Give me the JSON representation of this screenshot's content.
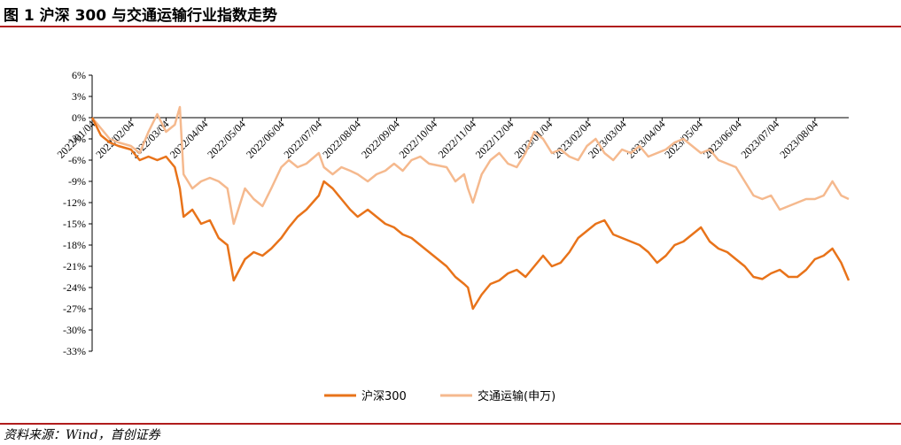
{
  "header": {
    "title": "图 1 沪深 300 与交通运输行业指数走势"
  },
  "footer": {
    "source": "资料来源：Wind，首创证券"
  },
  "chart_data": {
    "type": "line",
    "title": "",
    "xlabel": "",
    "ylabel": "",
    "ylim": [
      -33,
      6
    ],
    "y_ticks": [
      6,
      3,
      0,
      -3,
      -6,
      -9,
      -12,
      -15,
      -18,
      -21,
      -24,
      -27,
      -30,
      -33
    ],
    "y_tick_labels": [
      "6%",
      "3%",
      "0%",
      "-3%",
      "-6%",
      "-9%",
      "-12%",
      "-15%",
      "-18%",
      "-21%",
      "-24%",
      "-27%",
      "-30%",
      "-33%"
    ],
    "x_tick_labels": [
      "2022/01/04",
      "2022/02/04",
      "2022/03/04",
      "2022/04/04",
      "2022/05/04",
      "2022/06/04",
      "2022/07/04",
      "2022/08/04",
      "2022/09/04",
      "2022/10/04",
      "2022/11/04",
      "2022/12/04",
      "2023/01/04",
      "2023/02/04",
      "2023/03/04",
      "2023/04/04",
      "2023/05/04",
      "2023/06/04",
      "2023/07/04",
      "2023/08/04"
    ],
    "legend": "bottom-center",
    "grid": false,
    "colors": {
      "hs300": "#e8731a",
      "transport": "#f5b98e"
    },
    "series": [
      {
        "name": "沪深300",
        "x": [
          "2022/01/04",
          "2022/01/11",
          "2022/01/18",
          "2022/01/25",
          "2022/02/04",
          "2022/02/11",
          "2022/02/18",
          "2022/02/25",
          "2022/03/04",
          "2022/03/11",
          "2022/03/15",
          "2022/03/18",
          "2022/03/25",
          "2022/04/01",
          "2022/04/08",
          "2022/04/15",
          "2022/04/22",
          "2022/04/27",
          "2022/05/06",
          "2022/05/13",
          "2022/05/20",
          "2022/05/27",
          "2022/06/04",
          "2022/06/10",
          "2022/06/17",
          "2022/06/24",
          "2022/07/04",
          "2022/07/08",
          "2022/07/15",
          "2022/07/22",
          "2022/07/29",
          "2022/08/04",
          "2022/08/12",
          "2022/08/19",
          "2022/08/26",
          "2022/09/02",
          "2022/09/09",
          "2022/09/16",
          "2022/09/23",
          "2022/09/30",
          "2022/10/14",
          "2022/10/21",
          "2022/10/28",
          "2022/10/31",
          "2022/11/04",
          "2022/11/11",
          "2022/11/18",
          "2022/11/25",
          "2022/12/02",
          "2022/12/09",
          "2022/12/16",
          "2022/12/23",
          "2022/12/30",
          "2023/01/06",
          "2023/01/13",
          "2023/01/20",
          "2023/01/27",
          "2023/02/03",
          "2023/02/10",
          "2023/02/17",
          "2023/02/24",
          "2023/03/03",
          "2023/03/10",
          "2023/03/17",
          "2023/03/24",
          "2023/03/31",
          "2023/04/07",
          "2023/04/14",
          "2023/04/21",
          "2023/04/28",
          "2023/05/05",
          "2023/05/12",
          "2023/05/19",
          "2023/05/26",
          "2023/06/02",
          "2023/06/09",
          "2023/06/16",
          "2023/06/23",
          "2023/06/30",
          "2023/07/07",
          "2023/07/14",
          "2023/07/21",
          "2023/07/28",
          "2023/08/04",
          "2023/08/11",
          "2023/08/18",
          "2023/08/25",
          "2023/08/31"
        ],
        "values": [
          0,
          -2.5,
          -3.5,
          -4,
          -4.5,
          -6,
          -5.5,
          -6,
          -5.5,
          -7,
          -10,
          -14,
          -13,
          -15,
          -14.5,
          -17,
          -18,
          -23,
          -20,
          -19,
          -19.5,
          -18.5,
          -17,
          -15.5,
          -14,
          -13,
          -11,
          -9,
          -10,
          -11.5,
          -13,
          -14,
          -13,
          -14,
          -15,
          -15.5,
          -16.5,
          -17,
          -18,
          -19,
          -21,
          -22.5,
          -23.5,
          -24,
          -27,
          -25,
          -23.5,
          -23,
          -22,
          -21.5,
          -22.5,
          -21,
          -19.5,
          -21,
          -20.5,
          -19,
          -17,
          -16,
          -15,
          -14.5,
          -16.5,
          -17,
          -17.5,
          -18,
          -19,
          -20.5,
          -19.5,
          -18,
          -17.5,
          -16.5,
          -15.5,
          -17.5,
          -18.5,
          -19,
          -20,
          -21,
          -22.5,
          -22.8,
          -22,
          -21.5,
          -22.5,
          -22.5,
          -21.5,
          -20,
          -19.5,
          -18.5,
          -20.5,
          -23
        ]
      },
      {
        "name": "交通运输(申万)",
        "x": [
          "2022/01/04",
          "2022/01/11",
          "2022/01/18",
          "2022/01/25",
          "2022/02/04",
          "2022/02/11",
          "2022/02/18",
          "2022/02/25",
          "2022/03/04",
          "2022/03/11",
          "2022/03/15",
          "2022/03/18",
          "2022/03/25",
          "2022/04/01",
          "2022/04/08",
          "2022/04/15",
          "2022/04/22",
          "2022/04/27",
          "2022/05/06",
          "2022/05/13",
          "2022/05/20",
          "2022/05/27",
          "2022/06/04",
          "2022/06/10",
          "2022/06/17",
          "2022/06/24",
          "2022/07/04",
          "2022/07/08",
          "2022/07/15",
          "2022/07/22",
          "2022/07/29",
          "2022/08/04",
          "2022/08/12",
          "2022/08/19",
          "2022/08/26",
          "2022/09/02",
          "2022/09/09",
          "2022/09/16",
          "2022/09/23",
          "2022/09/30",
          "2022/10/14",
          "2022/10/21",
          "2022/10/28",
          "2022/10/31",
          "2022/11/04",
          "2022/11/11",
          "2022/11/18",
          "2022/11/25",
          "2022/12/02",
          "2022/12/09",
          "2022/12/16",
          "2022/12/23",
          "2022/12/30",
          "2023/01/06",
          "2023/01/13",
          "2023/01/20",
          "2023/01/27",
          "2023/02/03",
          "2023/02/10",
          "2023/02/17",
          "2023/02/24",
          "2023/03/03",
          "2023/03/10",
          "2023/03/17",
          "2023/03/24",
          "2023/03/31",
          "2023/04/07",
          "2023/04/14",
          "2023/04/21",
          "2023/04/28",
          "2023/05/05",
          "2023/05/12",
          "2023/05/19",
          "2023/05/26",
          "2023/06/02",
          "2023/06/09",
          "2023/06/16",
          "2023/06/23",
          "2023/06/30",
          "2023/07/07",
          "2023/07/14",
          "2023/07/21",
          "2023/07/28",
          "2023/08/04",
          "2023/08/11",
          "2023/08/18",
          "2023/08/25",
          "2023/08/31"
        ],
        "values": [
          0,
          -1.5,
          -3,
          -3.5,
          -4,
          -5,
          -2,
          0.5,
          -2,
          -1,
          1.5,
          -8,
          -10,
          -9,
          -8.5,
          -9,
          -10,
          -15,
          -10,
          -11.5,
          -12.5,
          -10,
          -7,
          -6,
          -7,
          -6.5,
          -5,
          -7,
          -8,
          -7,
          -7.5,
          -8,
          -9,
          -8,
          -7.5,
          -6.5,
          -7.5,
          -6,
          -5.5,
          -6.5,
          -7,
          -9,
          -8,
          -10,
          -12,
          -8,
          -6,
          -5,
          -6.5,
          -7,
          -5,
          -2,
          -3,
          -5,
          -4.5,
          -5.5,
          -6,
          -4,
          -3,
          -5,
          -6,
          -4.5,
          -5,
          -4,
          -5.5,
          -5,
          -4.5,
          -3.5,
          -3,
          -4,
          -5,
          -4.5,
          -6,
          -6.5,
          -7,
          -9,
          -11,
          -11.5,
          -11,
          -13,
          -12.5,
          -12,
          -11.5,
          -11.5,
          -11,
          -9,
          -11,
          -11.5
        ]
      }
    ]
  }
}
